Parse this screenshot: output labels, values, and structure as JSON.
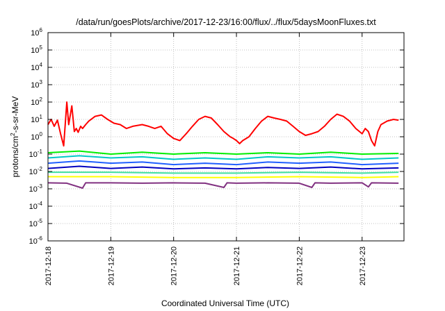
{
  "chart_data": {
    "type": "line",
    "title": "/data/run/goesPlots/archive/2017-12-23/16:00/flux/../flux/5daysMoonFluxes.txt",
    "xlabel": "Coordinated Universal Time (UTC)",
    "ylabel": {
      "base": "protons/cm",
      "sup": "2",
      "rest": "-s-sr-MeV"
    },
    "yscale": "log",
    "ylim": [
      1e-06,
      1000000.0
    ],
    "ytick_exponents": [
      -6,
      -5,
      -4,
      -3,
      -2,
      -1,
      0,
      1,
      2,
      3,
      4,
      5,
      6
    ],
    "ytick_base": "10",
    "xlim": [
      "2017-12-18",
      "2017-12-23 16:00"
    ],
    "x_tick_labels": [
      "2017-12-18",
      "2017-12-19",
      "2017-12-20",
      "2017-12-21",
      "2017-12-22",
      "2017-12-23"
    ],
    "grid": true,
    "series": [
      {
        "color": "#ff0000",
        "values": [
          [
            0,
            5
          ],
          [
            0.05,
            10
          ],
          [
            0.1,
            4
          ],
          [
            0.15,
            9
          ],
          [
            0.2,
            1.5
          ],
          [
            0.25,
            0.3
          ],
          [
            0.3,
            100
          ],
          [
            0.33,
            5
          ],
          [
            0.38,
            60
          ],
          [
            0.42,
            2
          ],
          [
            0.45,
            3
          ],
          [
            0.48,
            1.8
          ],
          [
            0.52,
            4
          ],
          [
            0.55,
            3
          ],
          [
            0.6,
            5
          ],
          [
            0.65,
            8
          ],
          [
            0.75,
            15
          ],
          [
            0.85,
            18
          ],
          [
            0.95,
            10
          ],
          [
            1.05,
            6
          ],
          [
            1.15,
            5
          ],
          [
            1.25,
            3
          ],
          [
            1.35,
            4
          ],
          [
            1.5,
            5
          ],
          [
            1.6,
            4
          ],
          [
            1.7,
            3
          ],
          [
            1.8,
            4
          ],
          [
            1.9,
            1.5
          ],
          [
            2.0,
            0.8
          ],
          [
            2.1,
            0.6
          ],
          [
            2.2,
            1.5
          ],
          [
            2.3,
            4
          ],
          [
            2.4,
            10
          ],
          [
            2.5,
            15
          ],
          [
            2.6,
            12
          ],
          [
            2.7,
            5
          ],
          [
            2.8,
            2
          ],
          [
            2.9,
            1
          ],
          [
            2.95,
            0.8
          ],
          [
            3.0,
            0.6
          ],
          [
            3.05,
            0.4
          ],
          [
            3.1,
            0.6
          ],
          [
            3.2,
            1
          ],
          [
            3.3,
            3
          ],
          [
            3.4,
            8
          ],
          [
            3.5,
            15
          ],
          [
            3.6,
            12
          ],
          [
            3.7,
            10
          ],
          [
            3.8,
            8
          ],
          [
            3.9,
            4
          ],
          [
            4.0,
            2
          ],
          [
            4.1,
            1.2
          ],
          [
            4.2,
            1.5
          ],
          [
            4.3,
            2
          ],
          [
            4.4,
            4
          ],
          [
            4.5,
            10
          ],
          [
            4.6,
            20
          ],
          [
            4.7,
            15
          ],
          [
            4.8,
            8
          ],
          [
            4.9,
            3
          ],
          [
            5.0,
            1.5
          ],
          [
            5.05,
            3
          ],
          [
            5.1,
            2
          ],
          [
            5.15,
            0.6
          ],
          [
            5.2,
            0.3
          ],
          [
            5.25,
            2
          ],
          [
            5.3,
            5
          ],
          [
            5.4,
            8
          ],
          [
            5.5,
            10
          ],
          [
            5.58,
            9
          ]
        ]
      },
      {
        "color": "#00ee00",
        "values": [
          [
            0,
            0.12
          ],
          [
            0.5,
            0.15
          ],
          [
            1,
            0.1
          ],
          [
            1.5,
            0.13
          ],
          [
            2,
            0.1
          ],
          [
            2.5,
            0.12
          ],
          [
            3,
            0.1
          ],
          [
            3.5,
            0.12
          ],
          [
            4,
            0.1
          ],
          [
            4.5,
            0.13
          ],
          [
            5,
            0.1
          ],
          [
            5.58,
            0.11
          ]
        ]
      },
      {
        "color": "#00c8c8",
        "values": [
          [
            0,
            0.06
          ],
          [
            0.5,
            0.08
          ],
          [
            1,
            0.06
          ],
          [
            1.5,
            0.07
          ],
          [
            2,
            0.05
          ],
          [
            2.5,
            0.06
          ],
          [
            3,
            0.05
          ],
          [
            3.5,
            0.07
          ],
          [
            4,
            0.06
          ],
          [
            4.5,
            0.07
          ],
          [
            5,
            0.05
          ],
          [
            5.58,
            0.06
          ]
        ]
      },
      {
        "color": "#2060ff",
        "values": [
          [
            0,
            0.03
          ],
          [
            0.5,
            0.04
          ],
          [
            1,
            0.03
          ],
          [
            1.5,
            0.035
          ],
          [
            2,
            0.025
          ],
          [
            2.5,
            0.03
          ],
          [
            3,
            0.025
          ],
          [
            3.5,
            0.035
          ],
          [
            4,
            0.03
          ],
          [
            4.5,
            0.035
          ],
          [
            5,
            0.025
          ],
          [
            5.58,
            0.03
          ]
        ]
      },
      {
        "color": "#0000c0",
        "values": [
          [
            0,
            0.015
          ],
          [
            0.5,
            0.02
          ],
          [
            1,
            0.015
          ],
          [
            1.5,
            0.018
          ],
          [
            2,
            0.014
          ],
          [
            2.5,
            0.016
          ],
          [
            3,
            0.014
          ],
          [
            3.5,
            0.017
          ],
          [
            4,
            0.015
          ],
          [
            4.5,
            0.018
          ],
          [
            5,
            0.014
          ],
          [
            5.58,
            0.016
          ]
        ]
      },
      {
        "color": "#40e0a0",
        "values": [
          [
            0,
            0.009
          ],
          [
            1,
            0.009
          ],
          [
            2,
            0.008
          ],
          [
            3,
            0.008
          ],
          [
            4,
            0.009
          ],
          [
            5,
            0.008
          ],
          [
            5.58,
            0.009
          ]
        ]
      },
      {
        "color": "#ffff00",
        "values": [
          [
            0,
            0.005
          ],
          [
            1,
            0.005
          ],
          [
            2,
            0.0045
          ],
          [
            3,
            0.0045
          ],
          [
            4,
            0.005
          ],
          [
            5,
            0.0045
          ],
          [
            5.58,
            0.005
          ]
        ]
      },
      {
        "color": "#803080",
        "values": [
          [
            0,
            0.0022
          ],
          [
            0.3,
            0.0021
          ],
          [
            0.55,
            0.0011
          ],
          [
            0.6,
            0.0022
          ],
          [
            1,
            0.0022
          ],
          [
            1.5,
            0.0021
          ],
          [
            2,
            0.0022
          ],
          [
            2.5,
            0.0021
          ],
          [
            2.8,
            0.0012
          ],
          [
            2.85,
            0.0022
          ],
          [
            3,
            0.0021
          ],
          [
            3.5,
            0.0022
          ],
          [
            4,
            0.0021
          ],
          [
            4.2,
            0.0012
          ],
          [
            4.25,
            0.0022
          ],
          [
            4.5,
            0.0021
          ],
          [
            5,
            0.0022
          ],
          [
            5.1,
            0.0013
          ],
          [
            5.15,
            0.0022
          ],
          [
            5.58,
            0.0021
          ]
        ]
      }
    ]
  }
}
